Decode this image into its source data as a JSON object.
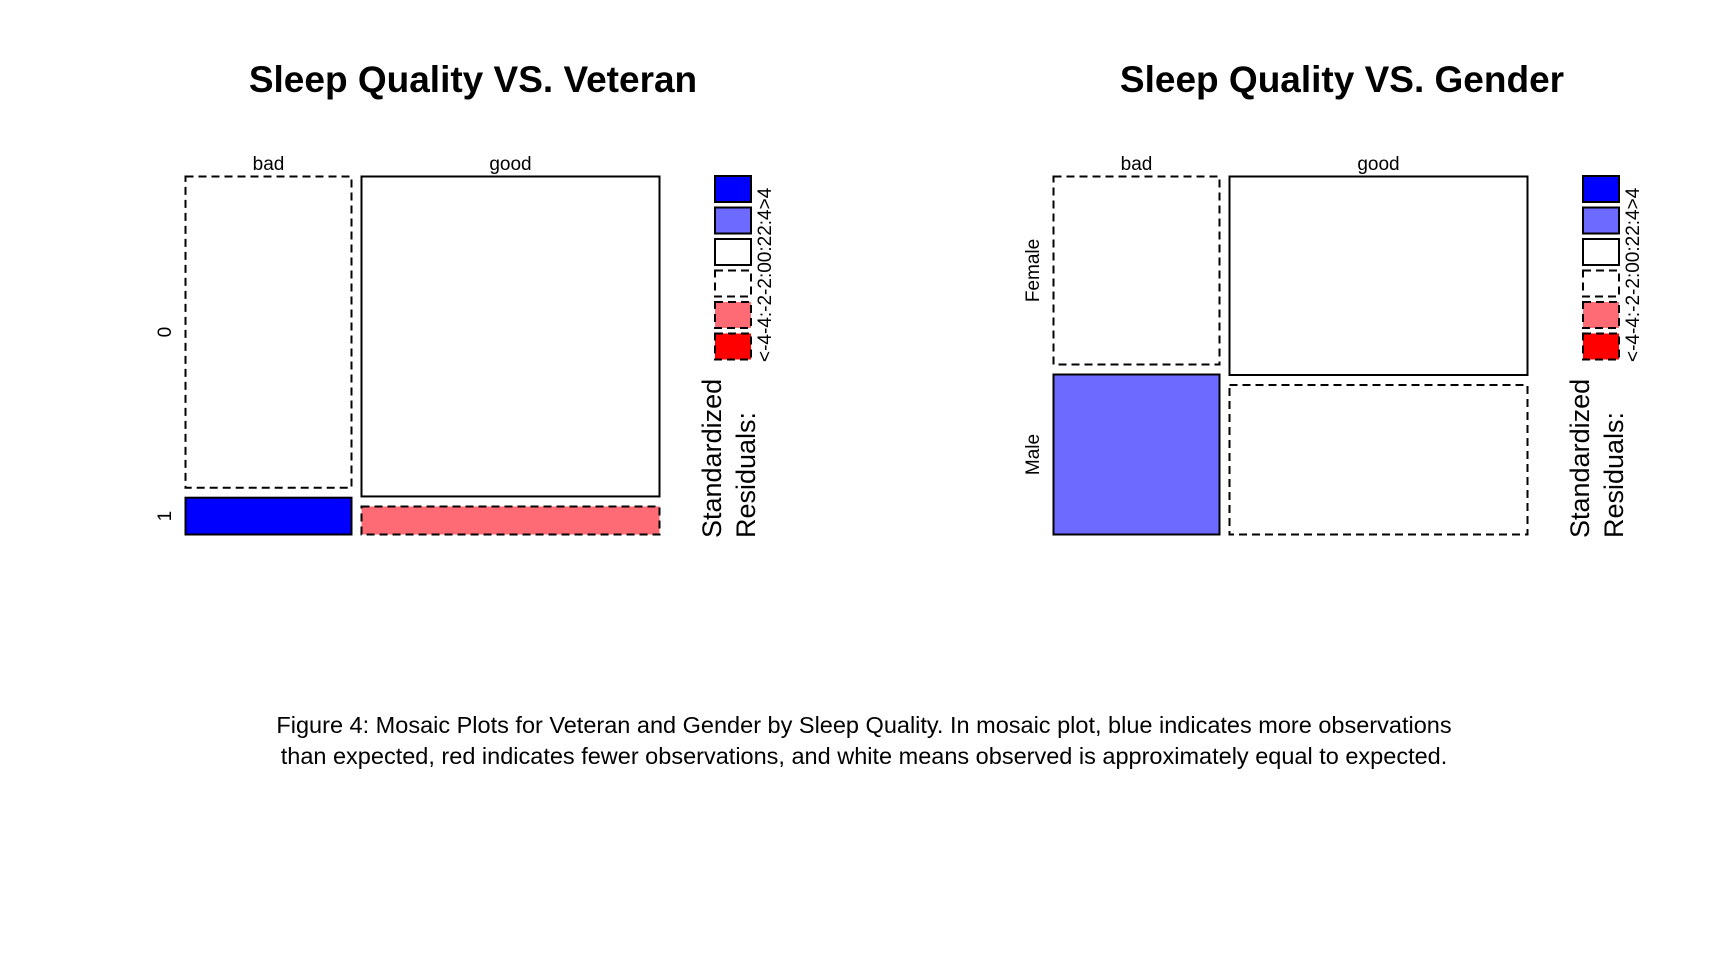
{
  "chart_data": [
    {
      "type": "mosaic",
      "title": "Sleep Quality VS. Veteran",
      "x_categories": [
        "bad",
        "good"
      ],
      "x_proportions": [
        0.355,
        0.645
      ],
      "y_categories": [
        "0",
        "1"
      ],
      "cells": [
        {
          "x": "bad",
          "y": "0",
          "proportion": 0.892,
          "residual_class": "-2:0",
          "fill": "#ffffff",
          "dashed": true
        },
        {
          "x": "bad",
          "y": "1",
          "proportion": 0.108,
          "residual_class": ">4",
          "fill": "#0000ff",
          "dashed": false
        },
        {
          "x": "good",
          "y": "0",
          "proportion": 0.917,
          "residual_class": "0:2",
          "fill": "#ffffff",
          "dashed": false
        },
        {
          "x": "good",
          "y": "1",
          "proportion": 0.083,
          "residual_class": "-4:-2",
          "fill": "#ff6b74",
          "dashed": true
        }
      ],
      "legend": {
        "title_line1": "Standardized",
        "title_line2": "Residuals:",
        "scale_label": "<-4-4:-2-2:00:22:4>4"
      }
    },
    {
      "type": "mosaic",
      "title": "Sleep Quality VS. Gender",
      "x_categories": [
        "bad",
        "good"
      ],
      "x_proportions": [
        0.355,
        0.645
      ],
      "y_categories": [
        "Female",
        "Male"
      ],
      "cells": [
        {
          "x": "bad",
          "y": "Female",
          "proportion": 0.54,
          "residual_class": "-2:0",
          "fill": "#ffffff",
          "dashed": true
        },
        {
          "x": "bad",
          "y": "Male",
          "proportion": 0.46,
          "residual_class": "2:4",
          "fill": "#6d6aff",
          "dashed": false
        },
        {
          "x": "good",
          "y": "Female",
          "proportion": 0.57,
          "residual_class": "0:2",
          "fill": "#ffffff",
          "dashed": false
        },
        {
          "x": "good",
          "y": "Male",
          "proportion": 0.43,
          "residual_class": "-2:0",
          "fill": "#ffffff",
          "dashed": true
        }
      ],
      "legend": {
        "title_line1": "Standardized",
        "title_line2": "Residuals:",
        "scale_label": "<-4-4:-2-2:00:22:4>4"
      }
    }
  ],
  "legend_colors": [
    {
      "range": ">4",
      "fill": "#0000ff",
      "dashed": false
    },
    {
      "range": "2:4",
      "fill": "#6d6aff",
      "dashed": false
    },
    {
      "range": "0:2",
      "fill": "#ffffff",
      "dashed": false
    },
    {
      "range": "-2:0",
      "fill": "#ffffff",
      "dashed": true
    },
    {
      "range": "-4:-2",
      "fill": "#ff6b74",
      "dashed": true
    },
    {
      "range": "<-4",
      "fill": "#ff0000",
      "dashed": true
    }
  ],
  "caption": {
    "line1": "Figure 4: Mosaic Plots for Veteran and Gender by Sleep Quality. In mosaic plot, blue indicates more observations",
    "line2": "than expected, red indicates fewer observations, and white means observed is approximately equal to expected."
  }
}
